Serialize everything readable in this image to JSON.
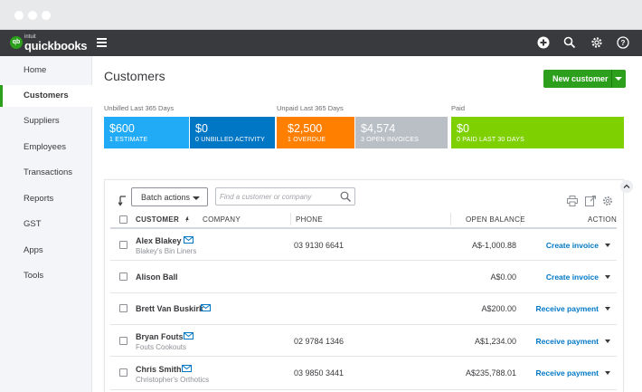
{
  "app": {
    "logo_intuit": "intuit",
    "logo_name": "quickbooks",
    "logo_badge": "qb"
  },
  "topbar_icons": [
    "plus-icon",
    "search-icon",
    "gear-icon",
    "help-icon"
  ],
  "sidebar": {
    "items": [
      {
        "label": "Home",
        "active": false
      },
      {
        "label": "Customers",
        "active": true
      },
      {
        "label": "Suppliers",
        "active": false
      },
      {
        "label": "Employees",
        "active": false
      },
      {
        "label": "Transactions",
        "active": false
      },
      {
        "label": "Reports",
        "active": false
      },
      {
        "label": "GST",
        "active": false
      },
      {
        "label": "Apps",
        "active": false
      },
      {
        "label": "Tools",
        "active": false
      }
    ]
  },
  "header": {
    "title": "Customers",
    "new_customer_label": "New customer"
  },
  "money_bar": {
    "unbilled_label": "Unbilled Last 365 Days",
    "unpaid_label": "Unpaid Last 365 Days",
    "paid_label": "Paid",
    "tiles": [
      {
        "amount": "$600",
        "label": "1 ESTIMATE",
        "color": "#21abf6"
      },
      {
        "amount": "$0",
        "label": "0 UNBILLED ACTIVITY",
        "color": "#0077c5"
      },
      {
        "amount": "$2,500",
        "label": "1 OVERDUE",
        "color": "#ff8000"
      },
      {
        "amount": "$4,574",
        "label": "3 OPEN INVOICES",
        "color": "#babec5"
      },
      {
        "amount": "$0",
        "label": "0 PAID LAST 30 DAYS",
        "color": "#7fd000"
      }
    ]
  },
  "toolbar": {
    "batch_actions_label": "Batch actions",
    "search_placeholder": "Find a customer or company"
  },
  "table": {
    "headers": {
      "customer": "CUSTOMER",
      "sort_arrow": "▲",
      "separator": "/",
      "company": "COMPANY",
      "phone": "PHONE",
      "open_balance": "OPEN BALANCE",
      "action": "ACTION"
    },
    "rows": [
      {
        "name": "Alex Blakey",
        "company": "Blakey's Bin Liners",
        "phone": "03 9130 6641",
        "balance": "A$-1,000.88",
        "action": "Create invoice",
        "has_email": true
      },
      {
        "name": "Alison Ball",
        "company": "",
        "phone": "",
        "balance": "A$0.00",
        "action": "Create invoice",
        "has_email": false
      },
      {
        "name": "Brett Van Buskirk",
        "company": "",
        "phone": "",
        "balance": "A$200.00",
        "action": "Receive payment",
        "has_email": true
      },
      {
        "name": "Bryan Fouts",
        "company": "Fouts Cookouts",
        "phone": "02 9784 1346",
        "balance": "A$1,234.00",
        "action": "Receive payment",
        "has_email": true
      },
      {
        "name": "Chris Smith",
        "company": "Christopher's Orthotics",
        "phone": "03 9850 3441",
        "balance": "A$235,788.01",
        "action": "Receive payment",
        "has_email": true
      }
    ]
  }
}
